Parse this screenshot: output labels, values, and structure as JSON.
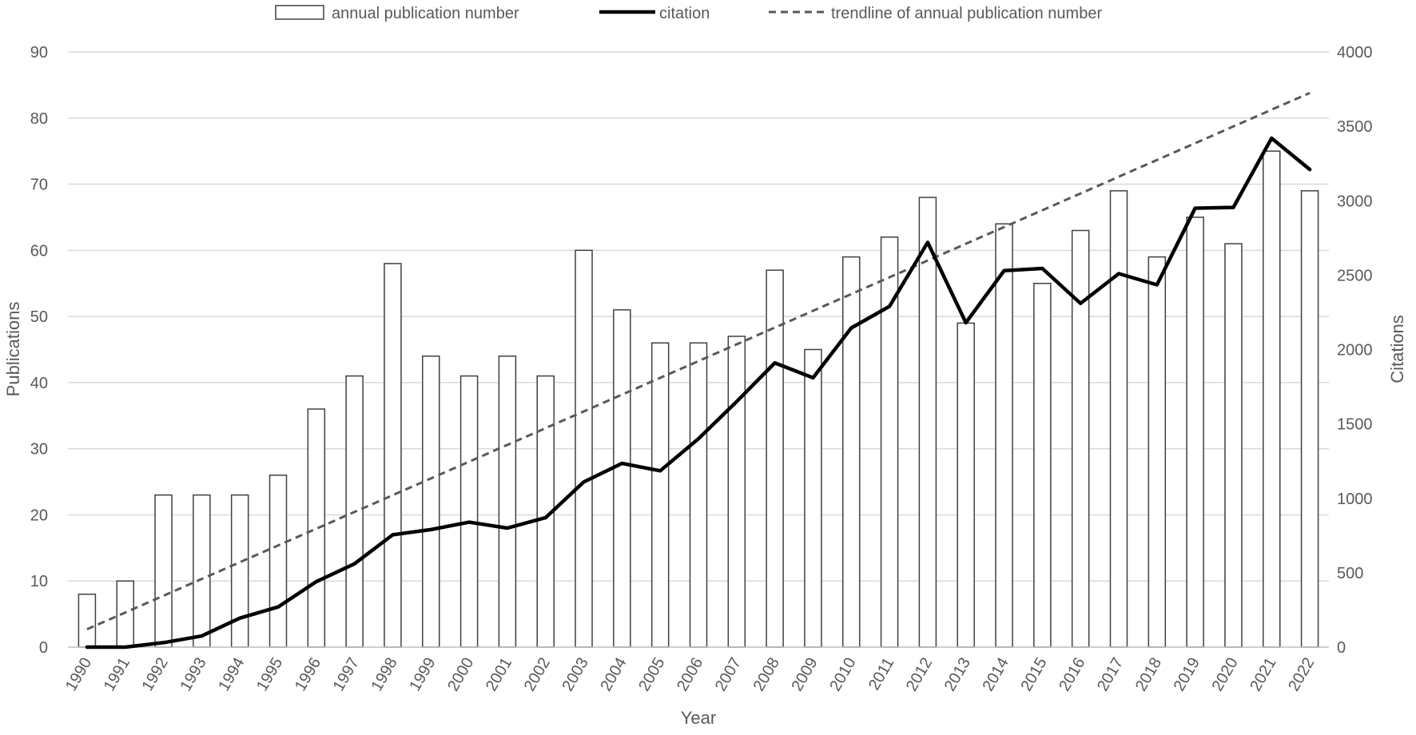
{
  "chart_data": {
    "type": "bar",
    "title": "",
    "xlabel": "Year",
    "ylabel": "Publications",
    "y2label": "Citations",
    "categories": [
      "1990",
      "1991",
      "1992",
      "1993",
      "1994",
      "1995",
      "1996",
      "1997",
      "1998",
      "1999",
      "2000",
      "2001",
      "2002",
      "2003",
      "2004",
      "2005",
      "2006",
      "2007",
      "2008",
      "2009",
      "2010",
      "2011",
      "2012",
      "2013",
      "2014",
      "2015",
      "2016",
      "2017",
      "2018",
      "2019",
      "2020",
      "2021",
      "2022"
    ],
    "ylim": [
      0,
      90
    ],
    "yticks": [
      0,
      10,
      20,
      30,
      40,
      50,
      60,
      70,
      80,
      90
    ],
    "y2lim": [
      0,
      4000
    ],
    "y2ticks": [
      0,
      500,
      1000,
      1500,
      2000,
      2500,
      3000,
      3500,
      4000
    ],
    "grid": true,
    "legend_position": "top",
    "series": [
      {
        "name": "annual publication number",
        "type": "bar",
        "axis": "left",
        "values": [
          8,
          10,
          23,
          23,
          23,
          26,
          36,
          41,
          58,
          44,
          41,
          44,
          41,
          60,
          51,
          46,
          46,
          47,
          57,
          45,
          59,
          62,
          68,
          49,
          64,
          55,
          63,
          69,
          59,
          65,
          61,
          75,
          69
        ]
      },
      {
        "name": "citation",
        "type": "line",
        "axis": "right",
        "values": [
          0,
          0,
          30,
          75,
          195,
          270,
          440,
          560,
          755,
          790,
          840,
          800,
          870,
          1110,
          1235,
          1185,
          1400,
          1650,
          1910,
          1810,
          2145,
          2290,
          2720,
          2180,
          2530,
          2545,
          2310,
          2510,
          2435,
          2950,
          2955,
          3420,
          3210
        ]
      },
      {
        "name": "trendline of annual publication number",
        "type": "trendline",
        "axis": "left",
        "style": "dashed",
        "start": 2.7,
        "end": 83.8
      }
    ],
    "colors": {
      "bar_fill": "#ffffff",
      "bar_stroke": "#404040",
      "citation_line": "#000000",
      "trendline": "#595959",
      "gridline": "#d9d9d9",
      "axis_text": "#595959"
    }
  }
}
